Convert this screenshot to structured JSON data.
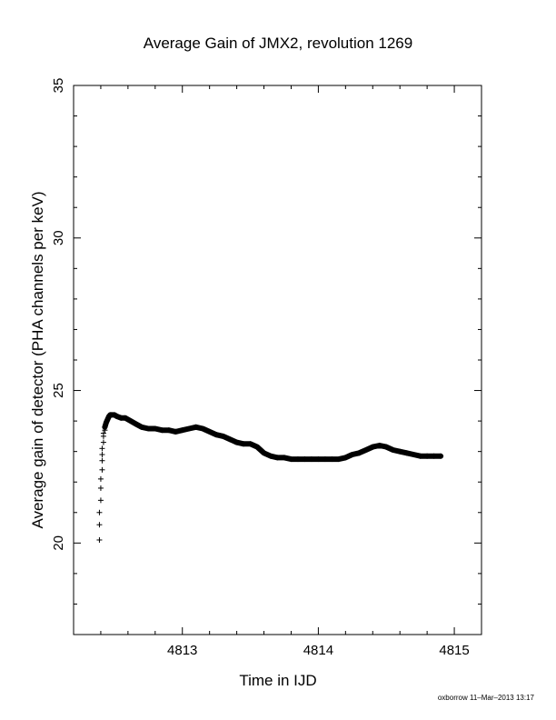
{
  "chart_data": {
    "type": "scatter",
    "title": "Average Gain of JMX2, revolution 1269",
    "xlabel": "Time in IJD",
    "ylabel": "Average gain of detector (PHA channels per keV)",
    "xlim": [
      4812.2,
      4815.2
    ],
    "ylim": [
      17,
      35
    ],
    "xticks": [
      "4813",
      "4814",
      "4815"
    ],
    "yticks": [
      "20",
      "25",
      "30",
      "35"
    ],
    "grid": false,
    "marker": "plus",
    "color": "#000000",
    "series": [
      {
        "x": [
          4812.39,
          4812.39,
          4812.39,
          4812.4,
          4812.4,
          4812.4,
          4812.41,
          4812.41,
          4812.41,
          4812.41,
          4812.42,
          4812.42,
          4812.42,
          4812.43,
          4812.43,
          4812.44,
          4812.45,
          4812.46,
          4812.47,
          4812.48,
          4812.5,
          4812.52,
          4812.55,
          4812.58,
          4812.62,
          4812.66,
          4812.7,
          4812.75,
          4812.8,
          4812.85,
          4812.9,
          4812.95,
          4813.0,
          4813.05,
          4813.1,
          4813.15,
          4813.2,
          4813.25,
          4813.3,
          4813.35,
          4813.4,
          4813.45,
          4813.5,
          4813.55,
          4813.6,
          4813.65,
          4813.7,
          4813.75,
          4813.8,
          4813.85,
          4813.9,
          4813.95,
          4814.0,
          4814.05,
          4814.1,
          4814.15,
          4814.2,
          4814.25,
          4814.3,
          4814.35,
          4814.4,
          4814.45,
          4814.5,
          4814.55,
          4814.6,
          4814.65,
          4814.7,
          4814.75,
          4814.8,
          4814.85,
          4814.9
        ],
        "y": [
          20.1,
          20.6,
          21.0,
          21.4,
          21.8,
          22.1,
          22.4,
          22.7,
          22.9,
          23.1,
          23.3,
          23.5,
          23.6,
          23.7,
          23.8,
          23.95,
          24.05,
          24.15,
          24.2,
          24.2,
          24.2,
          24.15,
          24.1,
          24.1,
          24.0,
          23.9,
          23.8,
          23.75,
          23.75,
          23.7,
          23.7,
          23.65,
          23.7,
          23.75,
          23.8,
          23.75,
          23.65,
          23.55,
          23.5,
          23.4,
          23.3,
          23.25,
          23.25,
          23.15,
          22.95,
          22.85,
          22.8,
          22.8,
          22.75,
          22.75,
          22.75,
          22.75,
          22.75,
          22.75,
          22.75,
          22.75,
          22.8,
          22.9,
          22.95,
          23.05,
          23.15,
          23.2,
          23.15,
          23.05,
          23.0,
          22.95,
          22.9,
          22.85,
          22.85,
          22.85,
          22.85
        ]
      }
    ]
  },
  "footer": {
    "stamp": "oxborrow 11–Mar–2013 13:17"
  }
}
